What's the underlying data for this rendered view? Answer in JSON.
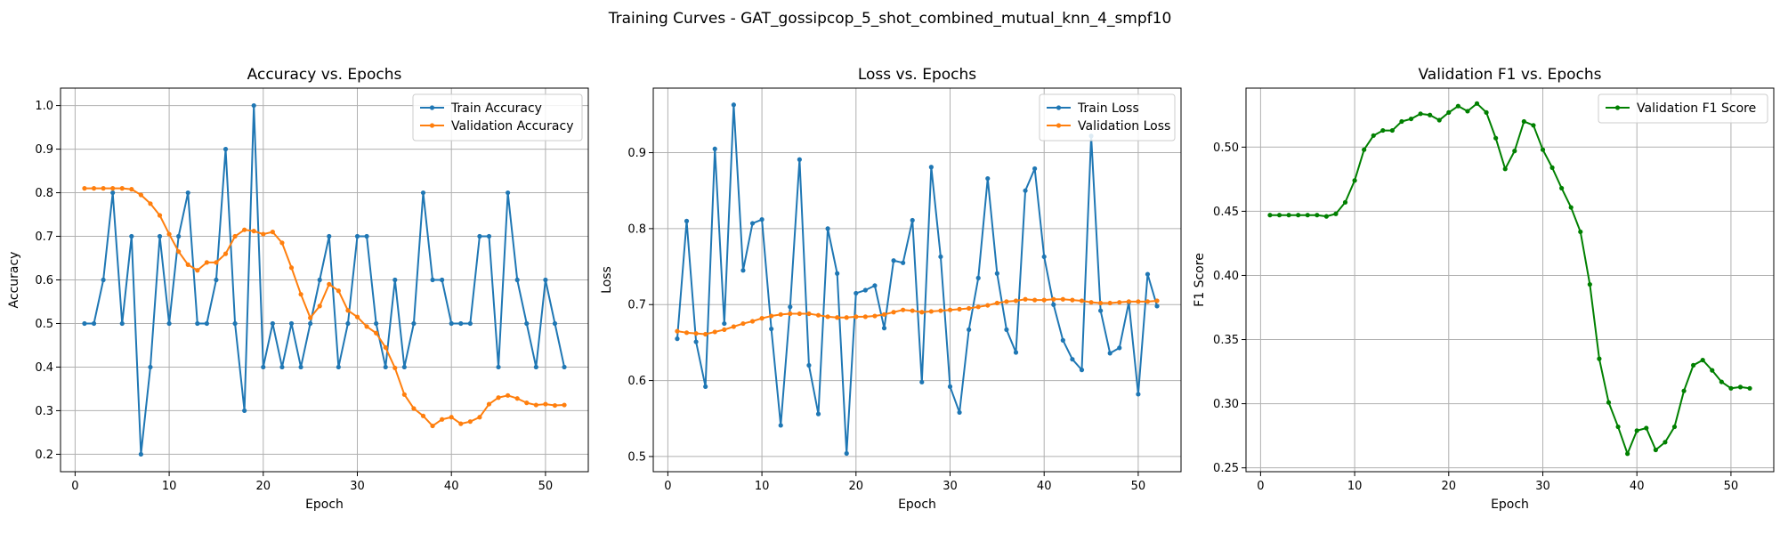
{
  "figure": {
    "suptitle": "Training Curves - GAT_gossipcop_5_shot_combined_mutual_knn_4_smpf10"
  },
  "colors": {
    "blue": "#1f77b4",
    "orange": "#ff7f0e",
    "green": "#008000"
  },
  "chart_data": [
    {
      "type": "line",
      "title": "Accuracy vs. Epochs",
      "xlabel": "Epoch",
      "ylabel": "Accuracy",
      "xlim": [
        -1.55,
        54.55
      ],
      "ylim": [
        0.16,
        1.04
      ],
      "xticks": [
        0,
        10,
        20,
        30,
        40,
        50
      ],
      "yticks": [
        0.2,
        0.3,
        0.4,
        0.5,
        0.6,
        0.7,
        0.8,
        0.9,
        1.0
      ],
      "ytick_labels": [
        "0.2",
        "0.3",
        "0.4",
        "0.5",
        "0.6",
        "0.7",
        "0.8",
        "0.9",
        "1.0"
      ],
      "grid": true,
      "legend": "top-right",
      "series": [
        {
          "name": "Train Accuracy",
          "color": "#1f77b4",
          "x": [
            1,
            2,
            3,
            4,
            5,
            6,
            7,
            8,
            9,
            10,
            11,
            12,
            13,
            14,
            15,
            16,
            17,
            18,
            19,
            20,
            21,
            22,
            23,
            24,
            25,
            26,
            27,
            28,
            29,
            30,
            31,
            32,
            33,
            34,
            35,
            36,
            37,
            38,
            39,
            40,
            41,
            42,
            43,
            44,
            45,
            46,
            47,
            48,
            49,
            50,
            51,
            52
          ],
          "values": [
            0.5,
            0.5,
            0.6,
            0.8,
            0.5,
            0.7,
            0.2,
            0.4,
            0.7,
            0.5,
            0.7,
            0.8,
            0.5,
            0.5,
            0.6,
            0.9,
            0.5,
            0.3,
            1.0,
            0.4,
            0.5,
            0.4,
            0.5,
            0.4,
            0.5,
            0.6,
            0.7,
            0.4,
            0.5,
            0.7,
            0.7,
            0.5,
            0.4,
            0.6,
            0.4,
            0.5,
            0.8,
            0.6,
            0.6,
            0.5,
            0.5,
            0.5,
            0.7,
            0.7,
            0.4,
            0.8,
            0.6,
            0.5,
            0.4,
            0.6,
            0.5,
            0.4
          ]
        },
        {
          "name": "Validation Accuracy",
          "color": "#ff7f0e",
          "x": [
            1,
            2,
            3,
            4,
            5,
            6,
            7,
            8,
            9,
            10,
            11,
            12,
            13,
            14,
            15,
            16,
            17,
            18,
            19,
            20,
            21,
            22,
            23,
            24,
            25,
            26,
            27,
            28,
            29,
            30,
            31,
            32,
            33,
            34,
            35,
            36,
            37,
            38,
            39,
            40,
            41,
            42,
            43,
            44,
            45,
            46,
            47,
            48,
            49,
            50,
            51,
            52
          ],
          "values": [
            0.81,
            0.81,
            0.81,
            0.81,
            0.81,
            0.808,
            0.795,
            0.775,
            0.748,
            0.705,
            0.665,
            0.635,
            0.622,
            0.64,
            0.64,
            0.66,
            0.7,
            0.715,
            0.712,
            0.705,
            0.71,
            0.685,
            0.628,
            0.567,
            0.513,
            0.54,
            0.59,
            0.575,
            0.53,
            0.515,
            0.493,
            0.478,
            0.445,
            0.398,
            0.337,
            0.305,
            0.288,
            0.265,
            0.28,
            0.285,
            0.27,
            0.275,
            0.285,
            0.315,
            0.33,
            0.335,
            0.328,
            0.318,
            0.313,
            0.315,
            0.312,
            0.313
          ]
        }
      ]
    },
    {
      "type": "line",
      "title": "Loss vs. Epochs",
      "xlabel": "Epoch",
      "ylabel": "Loss",
      "xlim": [
        -1.55,
        54.55
      ],
      "ylim": [
        0.48,
        0.985
      ],
      "xticks": [
        0,
        10,
        20,
        30,
        40,
        50
      ],
      "yticks": [
        0.5,
        0.6,
        0.7,
        0.8,
        0.9
      ],
      "ytick_labels": [
        "0.5",
        "0.6",
        "0.7",
        "0.8",
        "0.9"
      ],
      "grid": true,
      "legend": "top-right",
      "series": [
        {
          "name": "Train Loss",
          "color": "#1f77b4",
          "x": [
            1,
            2,
            3,
            4,
            5,
            6,
            7,
            8,
            9,
            10,
            11,
            12,
            13,
            14,
            15,
            16,
            17,
            18,
            19,
            20,
            21,
            22,
            23,
            24,
            25,
            26,
            27,
            28,
            29,
            30,
            31,
            32,
            33,
            34,
            35,
            36,
            37,
            38,
            39,
            40,
            41,
            42,
            43,
            44,
            45,
            46,
            47,
            48,
            49,
            50,
            51,
            52
          ],
          "values": [
            0.655,
            0.81,
            0.651,
            0.592,
            0.905,
            0.675,
            0.963,
            0.745,
            0.807,
            0.812,
            0.668,
            0.541,
            0.697,
            0.891,
            0.62,
            0.556,
            0.8,
            0.741,
            0.504,
            0.715,
            0.719,
            0.725,
            0.669,
            0.758,
            0.755,
            0.811,
            0.598,
            0.881,
            0.763,
            0.592,
            0.558,
            0.667,
            0.735,
            0.866,
            0.741,
            0.667,
            0.637,
            0.85,
            0.879,
            0.763,
            0.7,
            0.653,
            0.628,
            0.614,
            0.922,
            0.692,
            0.636,
            0.643,
            0.703,
            0.582,
            0.74,
            0.698
          ]
        },
        {
          "name": "Validation Loss",
          "color": "#ff7f0e",
          "x": [
            1,
            2,
            3,
            4,
            5,
            6,
            7,
            8,
            9,
            10,
            11,
            12,
            13,
            14,
            15,
            16,
            17,
            18,
            19,
            20,
            21,
            22,
            23,
            24,
            25,
            26,
            27,
            28,
            29,
            30,
            31,
            32,
            33,
            34,
            35,
            36,
            37,
            38,
            39,
            40,
            41,
            42,
            43,
            44,
            45,
            46,
            47,
            48,
            49,
            50,
            51,
            52
          ],
          "values": [
            0.665,
            0.663,
            0.662,
            0.661,
            0.664,
            0.667,
            0.671,
            0.675,
            0.678,
            0.682,
            0.685,
            0.687,
            0.688,
            0.688,
            0.688,
            0.686,
            0.684,
            0.683,
            0.683,
            0.684,
            0.684,
            0.685,
            0.687,
            0.69,
            0.693,
            0.692,
            0.69,
            0.691,
            0.692,
            0.693,
            0.694,
            0.695,
            0.697,
            0.699,
            0.702,
            0.704,
            0.705,
            0.707,
            0.706,
            0.706,
            0.707,
            0.707,
            0.706,
            0.705,
            0.703,
            0.702,
            0.702,
            0.703,
            0.704,
            0.704,
            0.704,
            0.705
          ]
        }
      ]
    },
    {
      "type": "line",
      "title": "Validation F1 vs. Epochs",
      "xlabel": "Epoch",
      "ylabel": "F1 Score",
      "xlim": [
        -1.55,
        54.55
      ],
      "ylim": [
        0.247,
        0.546
      ],
      "xticks": [
        0,
        10,
        20,
        30,
        40,
        50
      ],
      "yticks": [
        0.25,
        0.3,
        0.35,
        0.4,
        0.45,
        0.5
      ],
      "ytick_labels": [
        "0.25",
        "0.30",
        "0.35",
        "0.40",
        "0.45",
        "0.50"
      ],
      "grid": true,
      "legend": "top-right",
      "series": [
        {
          "name": "Validation F1 Score",
          "color": "#008000",
          "x": [
            1,
            2,
            3,
            4,
            5,
            6,
            7,
            8,
            9,
            10,
            11,
            12,
            13,
            14,
            15,
            16,
            17,
            18,
            19,
            20,
            21,
            22,
            23,
            24,
            25,
            26,
            27,
            28,
            29,
            30,
            31,
            32,
            33,
            34,
            35,
            36,
            37,
            38,
            39,
            40,
            41,
            42,
            43,
            44,
            45,
            46,
            47,
            48,
            49,
            50,
            51,
            52
          ],
          "values": [
            0.447,
            0.447,
            0.447,
            0.447,
            0.447,
            0.447,
            0.446,
            0.448,
            0.457,
            0.474,
            0.498,
            0.509,
            0.513,
            0.513,
            0.52,
            0.522,
            0.526,
            0.525,
            0.521,
            0.527,
            0.532,
            0.528,
            0.534,
            0.527,
            0.507,
            0.483,
            0.497,
            0.52,
            0.517,
            0.498,
            0.484,
            0.468,
            0.453,
            0.434,
            0.393,
            0.335,
            0.301,
            0.282,
            0.261,
            0.279,
            0.281,
            0.264,
            0.27,
            0.282,
            0.31,
            0.33,
            0.334,
            0.326,
            0.317,
            0.312,
            0.313,
            0.312
          ]
        }
      ]
    }
  ]
}
